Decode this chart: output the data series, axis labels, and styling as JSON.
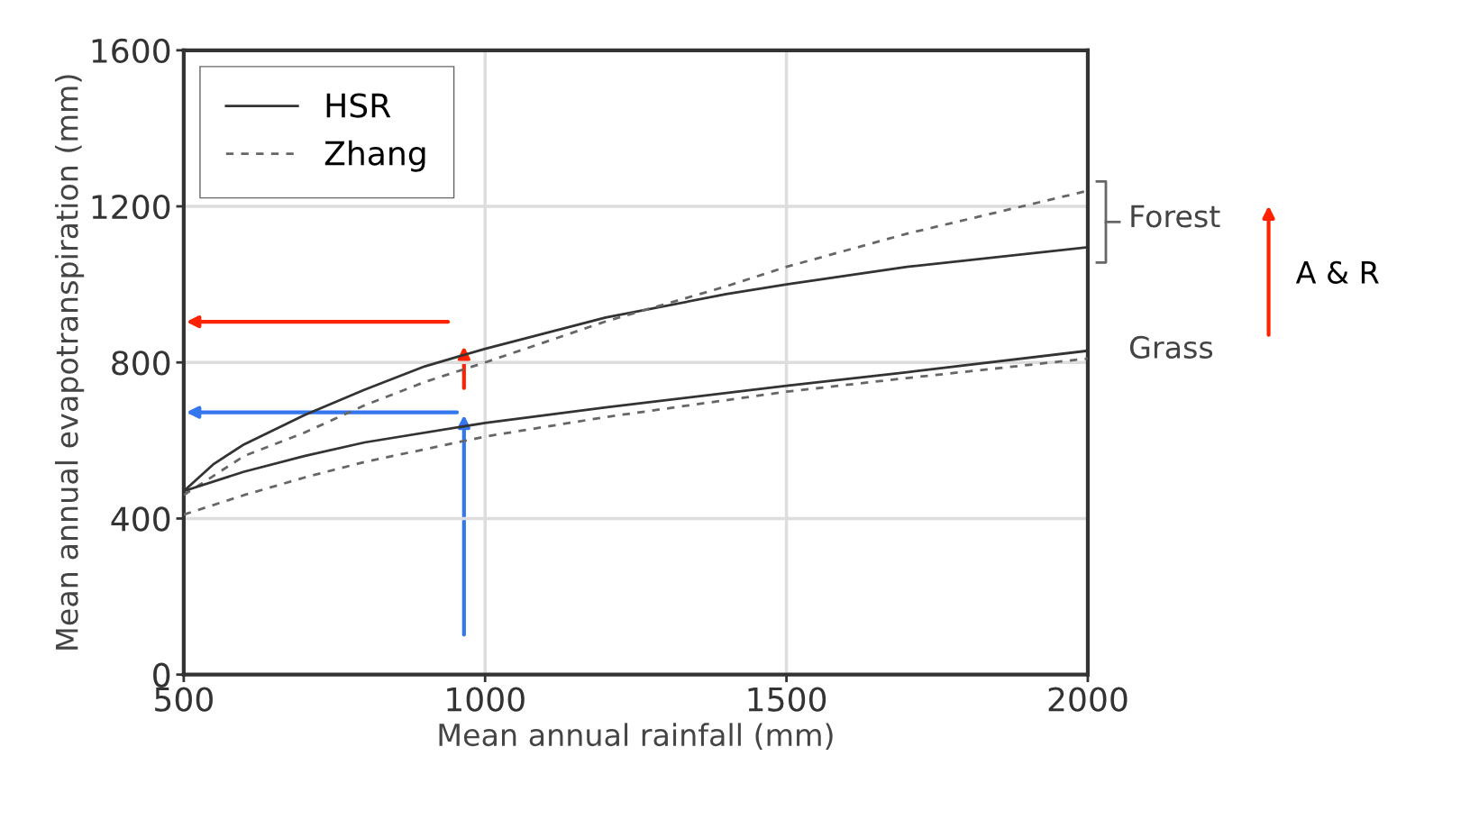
{
  "chart_data": {
    "type": "line",
    "xlabel": "Mean annual rainfall (mm)",
    "ylabel": "Mean annual evapotranspiration (mm)",
    "xlim": [
      500,
      2000
    ],
    "xticks": [
      500,
      1000,
      1500,
      2000
    ],
    "ylim": [
      0,
      1600
    ],
    "yticks": [
      0,
      400,
      800,
      1200,
      1600
    ],
    "grid": true,
    "legend": "top left",
    "series": [
      {
        "name": "HSR",
        "color": "#333333",
        "line_style": "solid",
        "x": [
          500,
          550,
          600,
          700,
          800,
          900,
          1000,
          1200,
          1400,
          1500,
          1700,
          2000
        ],
        "values": [
          470,
          540,
          590,
          665,
          730,
          790,
          835,
          915,
          975,
          1000,
          1045,
          1095
        ]
      },
      {
        "name": "Zhang",
        "color": "#666666",
        "line_style": "dashed",
        "x": [
          500,
          600,
          700,
          800,
          900,
          1000,
          1200,
          1400,
          1500,
          1700,
          2000
        ],
        "values": [
          460,
          560,
          620,
          690,
          750,
          800,
          905,
          995,
          1045,
          1130,
          1240
        ]
      },
      {
        "color": "#333333",
        "line_style": "solid",
        "x": [
          500,
          600,
          700,
          800,
          1000,
          1200,
          1500,
          1700,
          2000
        ],
        "values": [
          470,
          520,
          560,
          595,
          645,
          685,
          740,
          775,
          830
        ]
      },
      {
        "color": "#666666",
        "line_style": "dashed",
        "x": [
          500,
          600,
          700,
          800,
          1000,
          1200,
          1500,
          1700,
          2000
        ],
        "values": [
          410,
          460,
          505,
          545,
          610,
          660,
          725,
          760,
          810
        ]
      }
    ],
    "annotations": [
      "Forest",
      "Grass",
      "A & R"
    ]
  }
}
